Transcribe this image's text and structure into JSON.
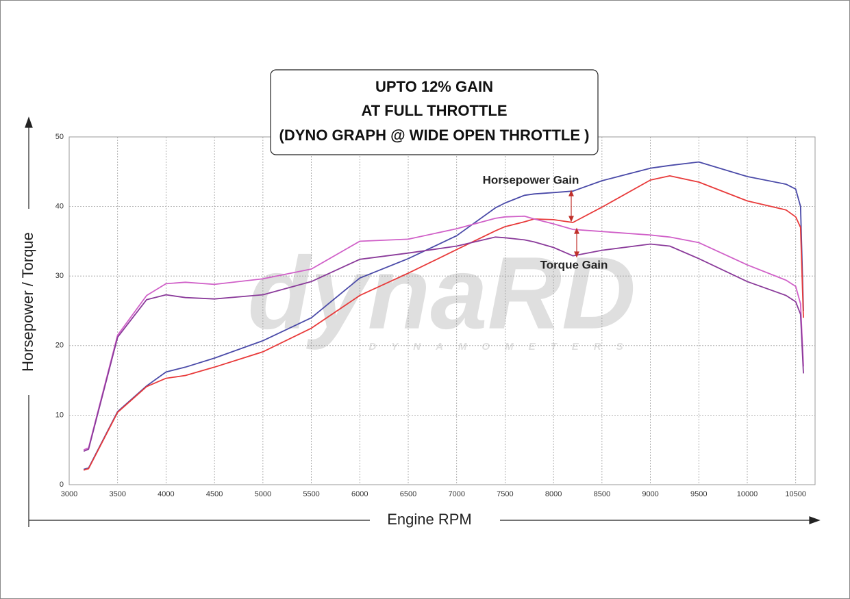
{
  "chart_data": {
    "type": "line",
    "title_lines": [
      "UPTO 12% GAIN",
      "AT FULL THROTTLE",
      "(DYNO GRAPH @ WIDE OPEN THROTTLE )"
    ],
    "x_label": "Engine RPM",
    "y_label": "Horsepower / Torque",
    "annotations": [
      "Horsepower Gain",
      "Torque Gain"
    ],
    "watermark": [
      "dynaRD",
      "DYNAMOMETERS"
    ],
    "x": [
      3150,
      3200,
      3500,
      3800,
      4000,
      4200,
      4500,
      5000,
      5500,
      6000,
      6500,
      7000,
      7400,
      7500,
      7700,
      7800,
      8000,
      8200,
      8500,
      9000,
      9200,
      9500,
      10000,
      10400,
      10500,
      10550,
      10580
    ],
    "series": [
      {
        "color": "#4a4aa8",
        "values": [
          2.2,
          2.4,
          10.5,
          14.2,
          16.2,
          16.9,
          18.2,
          20.7,
          24,
          29.7,
          32.5,
          35.8,
          39.8,
          40.5,
          41.6,
          41.8,
          42,
          42.2,
          43.7,
          45.5,
          45.9,
          46.4,
          44.3,
          43.2,
          42.5,
          40,
          25
        ]
      },
      {
        "color": "#e83a3a",
        "values": [
          2.1,
          2.3,
          10.4,
          14.1,
          15.3,
          15.7,
          16.9,
          19.1,
          22.5,
          27.2,
          30.4,
          33.8,
          36.5,
          37.1,
          37.8,
          38.2,
          38.1,
          37.7,
          39.9,
          43.8,
          44.4,
          43.5,
          40.8,
          39.5,
          38.5,
          37,
          24
        ]
      },
      {
        "color": "#d060c8",
        "values": [
          5,
          5.3,
          21.5,
          27.2,
          28.9,
          29.1,
          28.8,
          29.6,
          31,
          35,
          35.3,
          36.8,
          38.3,
          38.5,
          38.6,
          38.2,
          37.5,
          36.7,
          36.4,
          35.9,
          35.6,
          34.8,
          31.6,
          29.4,
          28.5,
          26,
          17
        ]
      },
      {
        "color": "#8a3a9a",
        "values": [
          4.8,
          5.1,
          21.2,
          26.6,
          27.3,
          26.9,
          26.7,
          27.3,
          29.2,
          32.4,
          33.3,
          34.3,
          35.6,
          35.5,
          35.2,
          34.9,
          34.1,
          32.9,
          33.7,
          34.6,
          34.3,
          32.5,
          29.2,
          27.2,
          26.3,
          24.5,
          16
        ]
      }
    ],
    "xlim": [
      3000,
      10700
    ],
    "ylim": [
      0,
      50
    ],
    "xticks": [
      3000,
      3500,
      4000,
      4500,
      5000,
      5500,
      6000,
      6500,
      7000,
      7500,
      8000,
      8500,
      9000,
      9500,
      10000,
      10500
    ],
    "yticks": [
      0,
      10,
      20,
      30,
      40,
      50
    ],
    "grid": true
  }
}
